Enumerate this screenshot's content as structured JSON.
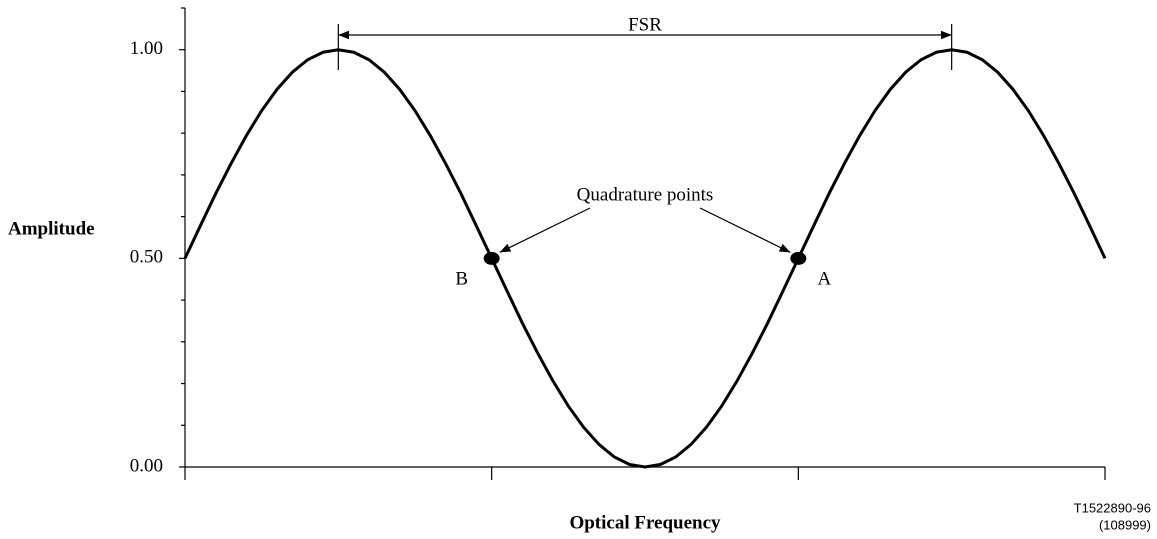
{
  "chart_data": {
    "type": "line",
    "ylabel": "Amplitude",
    "xlabel": "Optical Frequency",
    "note": [
      "T1522890-96",
      "(108999)"
    ],
    "x": [
      0,
      0.05,
      0.1,
      0.15,
      0.2,
      0.25,
      0.3,
      0.35,
      0.4,
      0.45,
      0.5,
      0.55,
      0.6,
      0.65,
      0.7,
      0.75,
      0.8,
      0.85,
      0.9,
      0.95,
      1,
      1.05,
      1.1,
      1.15,
      1.2,
      1.25,
      1.3,
      1.35,
      1.4,
      1.45,
      1.5,
      1.55,
      1.6,
      1.65,
      1.7,
      1.75,
      1.8,
      1.85,
      1.9,
      1.95,
      2,
      2.05,
      2.1,
      2.15,
      2.2,
      2.25,
      2.3,
      2.35,
      2.4,
      2.45,
      2.5,
      2.55,
      2.6,
      2.65,
      2.7,
      2.75,
      2.8,
      2.85,
      2.9,
      2.95,
      3
    ],
    "series": [
      {
        "color": "#000000",
        "values": [
          0.5,
          0.578,
          0.655,
          0.727,
          0.794,
          0.854,
          0.905,
          0.946,
          0.976,
          0.994,
          1,
          0.994,
          0.976,
          0.946,
          0.905,
          0.854,
          0.794,
          0.727,
          0.655,
          0.578,
          0.5,
          0.422,
          0.345,
          0.273,
          0.206,
          0.146,
          0.095,
          0.054,
          0.024,
          0.006,
          0,
          0.006,
          0.024,
          0.054,
          0.095,
          0.146,
          0.206,
          0.273,
          0.345,
          0.422,
          0.5,
          0.578,
          0.655,
          0.727,
          0.794,
          0.854,
          0.905,
          0.946,
          0.976,
          0.994,
          1,
          0.994,
          0.976,
          0.946,
          0.905,
          0.854,
          0.794,
          0.727,
          0.655,
          0.578,
          0.5
        ]
      }
    ],
    "xlim": [
      0,
      3
    ],
    "xticks": [
      0,
      1,
      2,
      3
    ],
    "ylim": [
      0,
      1.1
    ],
    "yticks": [
      {
        "value": 0,
        "label": "0.00"
      },
      {
        "value": 0.5,
        "label": "0.50"
      },
      {
        "value": 1,
        "label": "1.00"
      }
    ],
    "yticks_minor": [
      0.1,
      0.2,
      0.3,
      0.4,
      0.6,
      0.7,
      0.8,
      0.9,
      1.1
    ],
    "grid": false,
    "points": [
      {
        "label": "B",
        "x": 1,
        "y": 0.5
      },
      {
        "label": "A",
        "x": 2,
        "y": 0.5
      }
    ],
    "points_annotation": "Quadrature points",
    "fsr": {
      "label": "FSR",
      "from": 0.5,
      "to": 2.5
    }
  }
}
